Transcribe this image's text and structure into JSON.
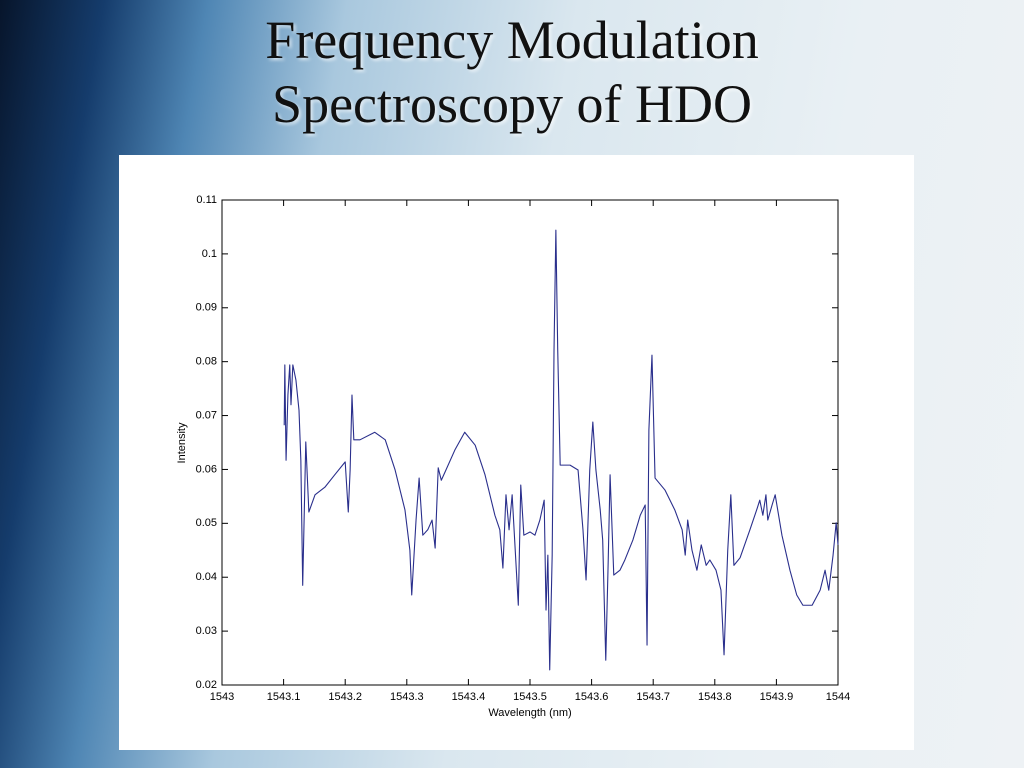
{
  "chart_data": {
    "type": "line",
    "title": "Frequency Modulation Spectroscopy of HDO",
    "xlabel": "Wavelength (nm)",
    "ylabel": "Intensity",
    "color": "#2a2f8c",
    "xlim": [
      1543,
      1544
    ],
    "ylim": [
      0.02,
      0.11
    ],
    "xticks": [
      1543,
      1543.1,
      1543.2,
      1543.3,
      1543.4,
      1543.5,
      1543.6,
      1543.7,
      1543.8,
      1543.9,
      1544
    ],
    "yticks": [
      0.02,
      0.03,
      0.04,
      0.05,
      0.06,
      0.07,
      0.08,
      0.09,
      0.1,
      0.11
    ],
    "grid": false,
    "x": [
      1543.101,
      1543.102,
      1543.104,
      1543.107,
      1543.11,
      1543.112,
      1543.115,
      1543.12,
      1543.125,
      1543.128,
      1543.131,
      1543.136,
      1543.141,
      1543.151,
      1543.167,
      1543.183,
      1543.2,
      1543.205,
      1543.208,
      1543.211,
      1543.214,
      1543.224,
      1543.248,
      1543.265,
      1543.281,
      1543.297,
      1543.305,
      1543.308,
      1543.315,
      1543.32,
      1543.326,
      1543.334,
      1543.341,
      1543.346,
      1543.351,
      1543.356,
      1543.362,
      1543.378,
      1543.394,
      1543.411,
      1543.427,
      1543.443,
      1543.451,
      1543.456,
      1543.461,
      1543.466,
      1543.471,
      1543.481,
      1543.485,
      1543.49,
      1543.5,
      1543.508,
      1543.516,
      1543.523,
      1543.526,
      1543.529,
      1543.532,
      1543.536,
      1543.539,
      1543.542,
      1543.545,
      1543.549,
      1543.565,
      1543.578,
      1543.586,
      1543.591,
      1543.597,
      1543.602,
      1543.607,
      1543.614,
      1543.618,
      1543.623,
      1543.627,
      1543.63,
      1543.636,
      1543.646,
      1543.654,
      1543.667,
      1543.679,
      1543.687,
      1543.69,
      1543.693,
      1543.698,
      1543.703,
      1543.719,
      1543.735,
      1543.747,
      1543.752,
      1543.756,
      1543.763,
      1543.771,
      1543.778,
      1543.786,
      1543.792,
      1543.802,
      1543.81,
      1543.815,
      1543.821,
      1543.826,
      1543.831,
      1543.841,
      1543.857,
      1543.868,
      1543.873,
      1543.878,
      1543.883,
      1543.886,
      1543.893,
      1543.898,
      1543.909,
      1543.922,
      1543.933,
      1543.943,
      1543.958,
      1543.971,
      1543.979,
      1543.985,
      1543.992,
      1543.997,
      1544.0
    ],
    "values": [
      0.0682,
      0.0794,
      0.0617,
      0.0738,
      0.0794,
      0.072,
      0.0794,
      0.0766,
      0.071,
      0.0617,
      0.0385,
      0.0651,
      0.0521,
      0.0553,
      0.0567,
      0.059,
      0.0614,
      0.0521,
      0.0599,
      0.0738,
      0.0655,
      0.0655,
      0.0669,
      0.0655,
      0.0599,
      0.0525,
      0.045,
      0.0367,
      0.0506,
      0.0584,
      0.0478,
      0.0488,
      0.0506,
      0.0454,
      0.0603,
      0.058,
      0.0595,
      0.0636,
      0.0669,
      0.0645,
      0.059,
      0.0515,
      0.0488,
      0.0417,
      0.0553,
      0.0488,
      0.0553,
      0.0348,
      0.0571,
      0.0478,
      0.0484,
      0.0478,
      0.0506,
      0.0543,
      0.0339,
      0.0441,
      0.0228,
      0.0441,
      0.0822,
      0.1044,
      0.0822,
      0.0608,
      0.0608,
      0.0599,
      0.0488,
      0.0395,
      0.0599,
      0.0688,
      0.0599,
      0.0525,
      0.0469,
      0.0246,
      0.0432,
      0.059,
      0.0404,
      0.0413,
      0.0432,
      0.0469,
      0.0515,
      0.0534,
      0.0274,
      0.0673,
      0.0812,
      0.0584,
      0.0562,
      0.0525,
      0.0488,
      0.0441,
      0.0506,
      0.045,
      0.0413,
      0.046,
      0.0422,
      0.0432,
      0.0413,
      0.0376,
      0.0256,
      0.045,
      0.0553,
      0.0422,
      0.0436,
      0.0488,
      0.0525,
      0.0543,
      0.0515,
      0.0553,
      0.0506,
      0.0534,
      0.0553,
      0.0478,
      0.0413,
      0.0367,
      0.0348,
      0.0348,
      0.0376,
      0.0413,
      0.0376,
      0.0441,
      0.0501,
      0.046
    ]
  }
}
